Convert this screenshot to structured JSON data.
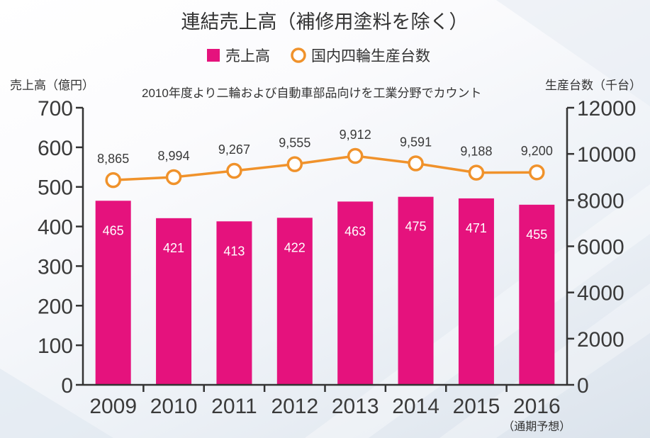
{
  "chart_data": {
    "type": "bar",
    "title": "連結売上高（補修用塗料を除く）",
    "annotation": "2010年度より二輪および自動車部品向けを工業分野でカウント",
    "categories": [
      "2009",
      "2010",
      "2011",
      "2012",
      "2013",
      "2014",
      "2015",
      "2016"
    ],
    "category_notes": [
      "",
      "",
      "",
      "",
      "",
      "",
      "",
      "（通期予想）"
    ],
    "ylabel": "売上高（億円）",
    "ylim": [
      0,
      700
    ],
    "yticks": [
      0,
      100,
      200,
      300,
      400,
      500,
      600,
      700
    ],
    "y2label": "生産台数（千台）",
    "y2lim": [
      0,
      12000
    ],
    "y2ticks": [
      0,
      2000,
      4000,
      6000,
      8000,
      10000,
      12000
    ],
    "grid": false,
    "legend_position": "top-center",
    "series": [
      {
        "name": "売上高",
        "type": "bar",
        "axis": "left",
        "color": "#e5127d",
        "values": [
          465,
          421,
          413,
          422,
          463,
          475,
          471,
          455
        ]
      },
      {
        "name": "国内四輪生産台数",
        "type": "line",
        "axis": "right",
        "color": "#f0922b",
        "values": [
          8865,
          8994,
          9267,
          9555,
          9912,
          9591,
          9188,
          9200
        ],
        "labels": [
          "8,865",
          "8,994",
          "9,267",
          "9,555",
          "9,912",
          "9,591",
          "9,188",
          "9,200"
        ]
      }
    ]
  }
}
